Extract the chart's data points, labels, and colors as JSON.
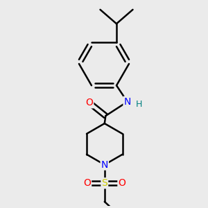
{
  "background_color": "#ebebeb",
  "bond_color": "#000000",
  "bond_width": 1.8,
  "atom_colors": {
    "O": "#ff0000",
    "N_amide": "#0000ff",
    "N_pip": "#0000ff",
    "S": "#cccc00",
    "H": "#008080",
    "C": "#000000"
  }
}
